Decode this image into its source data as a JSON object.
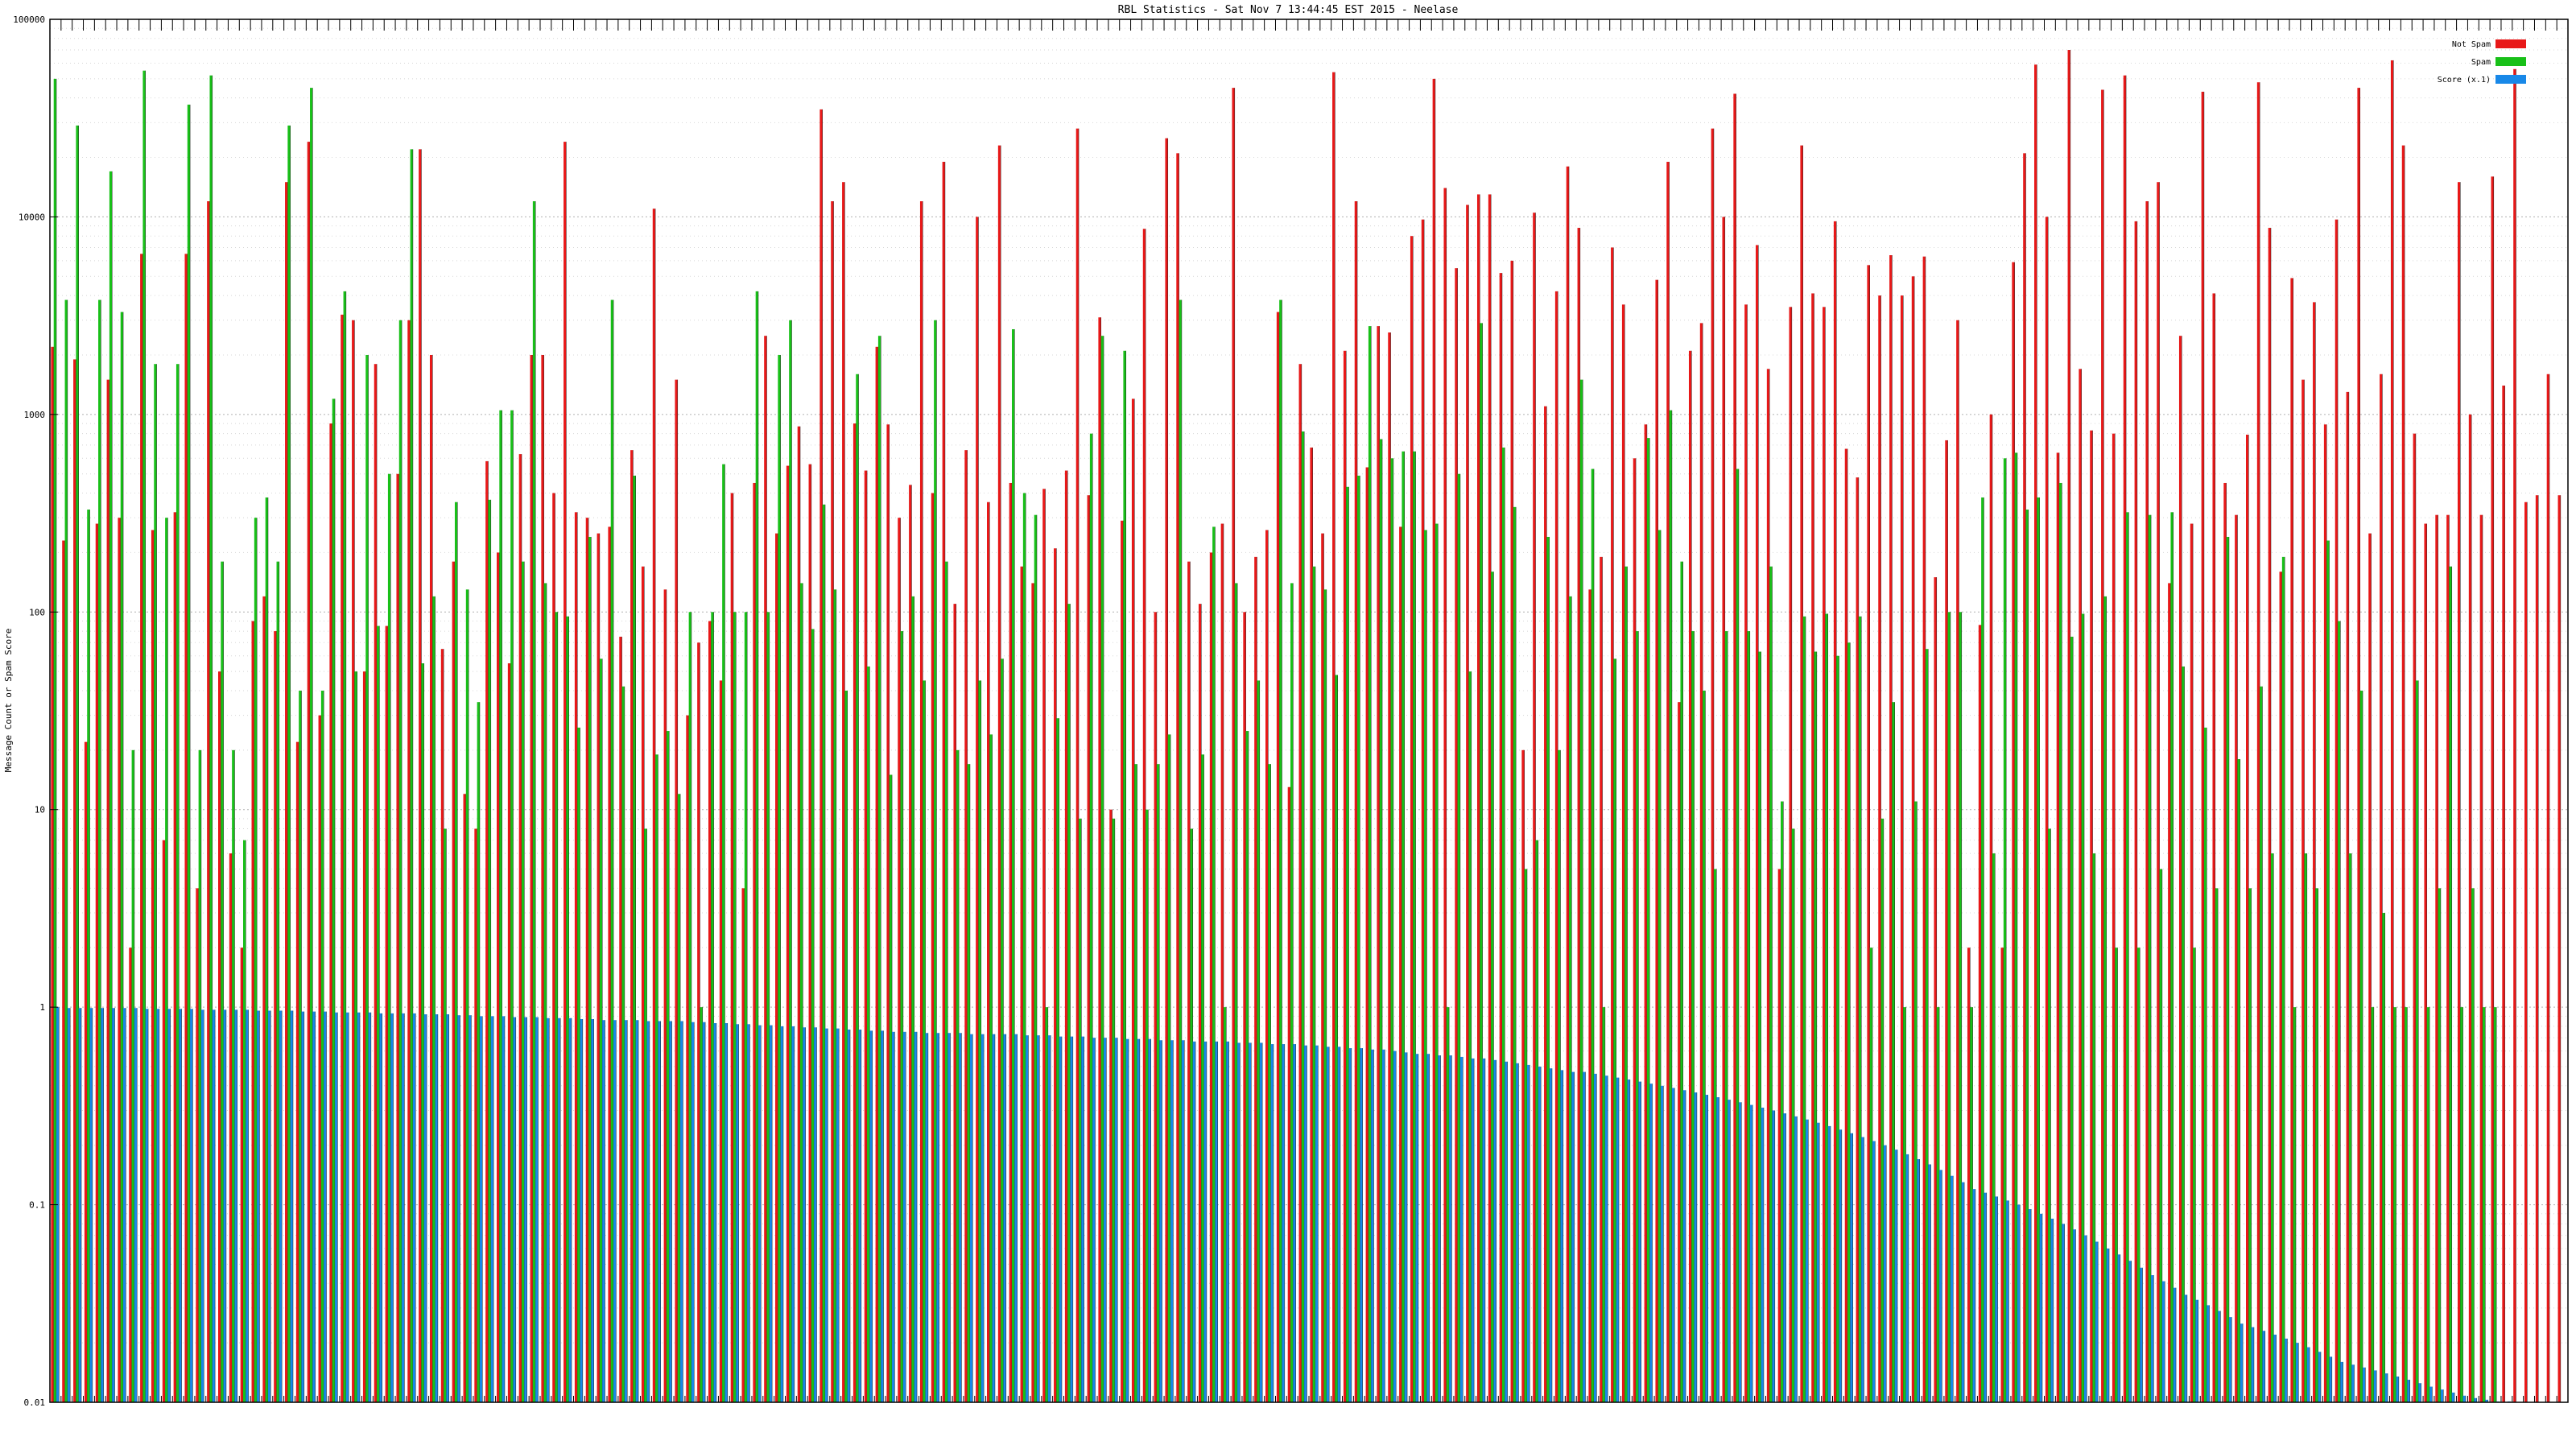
{
  "chart_data": {
    "type": "bar",
    "title": "RBL Statistics - Sat Nov  7 13:44:45 EST 2015 - Neelase",
    "ylabel": "Message Count or Spam Score",
    "xlabel": "",
    "yscale": "log",
    "ylim": [
      0.01,
      100000
    ],
    "yticks": [
      "0.01",
      "0.1",
      "1",
      "10",
      "100",
      "1000",
      "10000",
      "100000"
    ],
    "grid": true,
    "legend_position": "top-right",
    "colors": {
      "ham": "#e81818",
      "spam": "#18c018",
      "score": "#1888e8"
    },
    "series": [
      {
        "name": "Not Spam",
        "values": [
          2200,
          230,
          1900,
          22,
          280,
          1500,
          300,
          2,
          6500,
          260,
          7,
          320,
          6500,
          4,
          12000,
          50,
          6,
          2,
          90,
          120,
          80,
          15000,
          22,
          24000,
          30,
          900,
          3200,
          3000,
          50,
          1800,
          85,
          500,
          3000,
          22000,
          2000,
          65,
          180,
          12,
          8,
          580,
          200,
          55,
          630,
          2000,
          2000,
          400,
          24000,
          320,
          300,
          250,
          270,
          75,
          660,
          170,
          11000,
          130,
          1500,
          30,
          70,
          90,
          45,
          400,
          4,
          450,
          2500,
          250,
          550,
          870,
          560,
          35000,
          12000,
          15000,
          900,
          520,
          2200,
          890,
          300,
          440,
          12000,
          400,
          19000,
          110,
          660,
          10000,
          360,
          23000,
          450,
          170,
          140,
          420,
          210,
          520,
          28000,
          390,
          3100,
          10,
          290,
          1200,
          8700,
          100,
          25000,
          21000,
          180,
          110,
          200,
          280,
          45000,
          100,
          190,
          260,
          3300,
          13,
          1800,
          680,
          250,
          54000,
          2100,
          12000,
          540,
          2800,
          2600,
          270,
          8000,
          9700,
          50000,
          14000,
          5500,
          11500,
          13000,
          13000,
          5200,
          6000,
          20,
          10500,
          1100,
          4200,
          18000,
          8800,
          130,
          190,
          7000,
          3600,
          600,
          890,
          4800,
          19000,
          35,
          2100,
          2900,
          28000,
          10000,
          42000,
          3600,
          7200,
          1700,
          5,
          3500,
          23000,
          4100,
          3500,
          9500,
          670,
          480,
          5700,
          4000,
          6400,
          4000,
          5000,
          6300,
          150,
          740,
          3000,
          2,
          86,
          1000,
          2,
          5900,
          21000,
          59000,
          10000,
          640,
          70000,
          1700,
          830,
          44000,
          800,
          52000,
          9500,
          12000,
          15000,
          140,
          2500,
          280,
          43000,
          4100,
          450,
          310,
          790,
          48000,
          8800,
          160,
          4900,
          1500,
          3700,
          890,
          9700,
          1300,
          45000,
          250,
          1600,
          62000,
          23000,
          800,
          280,
          310,
          310,
          15000,
          1000,
          310,
          16000,
          1400,
          56000,
          360,
          390,
          1600,
          390
        ]
      },
      {
        "name": "Spam",
        "values": [
          50000,
          3800,
          29000,
          330,
          3800,
          17000,
          3300,
          20,
          55000,
          1800,
          300,
          1800,
          37000,
          20,
          52000,
          180,
          20,
          7,
          300,
          380,
          180,
          29000,
          40,
          45000,
          40,
          1200,
          4200,
          50,
          2000,
          85,
          500,
          3000,
          22000,
          55,
          120,
          8,
          360,
          130,
          35,
          370,
          1050,
          1050,
          180,
          12000,
          140,
          100,
          95,
          26,
          240,
          58,
          3800,
          42,
          490,
          8,
          19,
          25,
          12,
          100,
          1,
          100,
          560,
          100,
          100,
          4200,
          100,
          2000,
          3000,
          140,
          82,
          350,
          130,
          40,
          1600,
          53,
          2500,
          15,
          80,
          120,
          45,
          3000,
          180,
          20,
          17,
          45,
          24,
          58,
          2700,
          400,
          310,
          1,
          29,
          110,
          9,
          800,
          2500,
          9,
          2100,
          17,
          10,
          17,
          24,
          3800,
          8,
          19,
          270,
          1,
          140,
          25,
          45,
          17,
          3800,
          140,
          820,
          170,
          130,
          48,
          430,
          490,
          2800,
          750,
          600,
          650,
          650,
          260,
          280,
          1,
          500,
          50,
          2900,
          160,
          680,
          340,
          5,
          7,
          240,
          20,
          120,
          1500,
          530,
          1,
          58,
          170,
          80,
          760,
          260,
          1050,
          180,
          80,
          40,
          5,
          80,
          530,
          80,
          63,
          170,
          11,
          8,
          95,
          63,
          98,
          60,
          70,
          95,
          2,
          9,
          35,
          1,
          11,
          65,
          1,
          100,
          100,
          1,
          380,
          6,
          600,
          640,
          330,
          380,
          8,
          450,
          75,
          98,
          6,
          120,
          2,
          320,
          2,
          310,
          5,
          320,
          53,
          2,
          26,
          4,
          240,
          18,
          4,
          42,
          6,
          190,
          1,
          6,
          4,
          230,
          90,
          6,
          40,
          1,
          3,
          1,
          1,
          45,
          1,
          4,
          170,
          1,
          4,
          1,
          1
        ]
      },
      {
        "name": "Score (x.1)",
        "values": [
          1.0,
          0.99,
          0.99,
          0.99,
          0.99,
          0.99,
          0.99,
          0.99,
          0.98,
          0.98,
          0.98,
          0.98,
          0.98,
          0.97,
          0.97,
          0.97,
          0.97,
          0.97,
          0.96,
          0.96,
          0.96,
          0.96,
          0.95,
          0.95,
          0.95,
          0.94,
          0.94,
          0.94,
          0.94,
          0.93,
          0.93,
          0.93,
          0.93,
          0.92,
          0.92,
          0.92,
          0.91,
          0.91,
          0.9,
          0.9,
          0.9,
          0.89,
          0.89,
          0.89,
          0.88,
          0.88,
          0.88,
          0.87,
          0.87,
          0.86,
          0.86,
          0.86,
          0.86,
          0.85,
          0.85,
          0.85,
          0.85,
          0.84,
          0.84,
          0.83,
          0.83,
          0.82,
          0.82,
          0.81,
          0.81,
          0.8,
          0.8,
          0.79,
          0.79,
          0.78,
          0.78,
          0.77,
          0.77,
          0.76,
          0.76,
          0.75,
          0.75,
          0.75,
          0.74,
          0.74,
          0.74,
          0.74,
          0.73,
          0.73,
          0.73,
          0.73,
          0.73,
          0.72,
          0.72,
          0.72,
          0.71,
          0.71,
          0.71,
          0.7,
          0.7,
          0.7,
          0.69,
          0.69,
          0.69,
          0.68,
          0.68,
          0.68,
          0.67,
          0.67,
          0.67,
          0.67,
          0.66,
          0.66,
          0.66,
          0.65,
          0.65,
          0.65,
          0.64,
          0.64,
          0.63,
          0.63,
          0.62,
          0.62,
          0.61,
          0.61,
          0.6,
          0.59,
          0.58,
          0.58,
          0.57,
          0.57,
          0.56,
          0.55,
          0.55,
          0.54,
          0.53,
          0.52,
          0.51,
          0.5,
          0.49,
          0.48,
          0.47,
          0.47,
          0.46,
          0.45,
          0.44,
          0.43,
          0.42,
          0.41,
          0.4,
          0.39,
          0.38,
          0.37,
          0.36,
          0.35,
          0.34,
          0.33,
          0.32,
          0.31,
          0.3,
          0.29,
          0.28,
          0.27,
          0.26,
          0.25,
          0.24,
          0.23,
          0.22,
          0.21,
          0.2,
          0.19,
          0.18,
          0.17,
          0.16,
          0.15,
          0.14,
          0.13,
          0.12,
          0.115,
          0.11,
          0.105,
          0.1,
          0.095,
          0.09,
          0.085,
          0.08,
          0.075,
          0.07,
          0.065,
          0.06,
          0.056,
          0.052,
          0.048,
          0.044,
          0.041,
          0.038,
          0.035,
          0.033,
          0.031,
          0.029,
          0.027,
          0.025,
          0.024,
          0.023,
          0.022,
          0.021,
          0.02,
          0.019,
          0.018,
          0.017,
          0.016,
          0.0155,
          0.015,
          0.0145,
          0.014,
          0.0135,
          0.013,
          0.0125,
          0.012,
          0.0116,
          0.0112,
          0.0108,
          0.0105,
          0.0103,
          0.0101,
          0.0101,
          0.01,
          0.01,
          0.01,
          0.01
        ]
      }
    ]
  }
}
